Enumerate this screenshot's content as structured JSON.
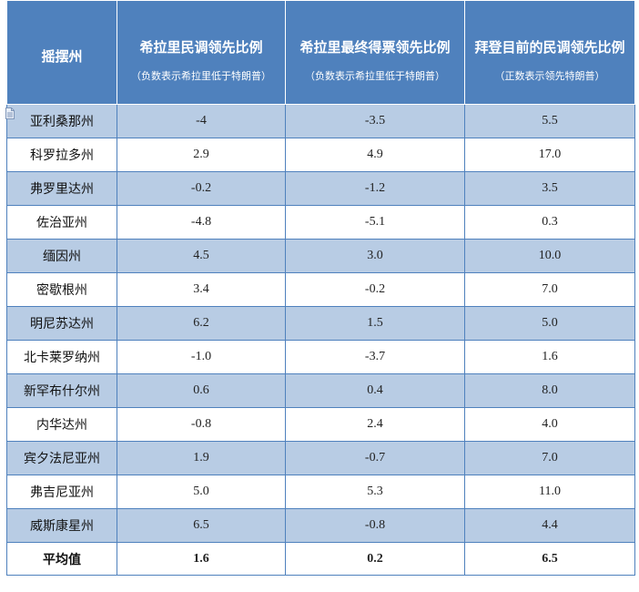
{
  "header": {
    "state_col": "摇摆州",
    "col1_title": "希拉里民调领先比例",
    "col1_note": "（负数表示希拉里低于特朗普）",
    "col2_title": "希拉里最终得票领先比例",
    "col2_note": "（负数表示希拉里低于特朗普）",
    "col3_title": "拜登目前的民调领先比例",
    "col3_note": "（正数表示领先特朗普）"
  },
  "rows": [
    {
      "state": "亚利桑那州",
      "c1": "-4",
      "c2": "-3.5",
      "c3": "5.5"
    },
    {
      "state": "科罗拉多州",
      "c1": "2.9",
      "c2": "4.9",
      "c3": "17.0"
    },
    {
      "state": "弗罗里达州",
      "c1": "-0.2",
      "c2": "-1.2",
      "c3": "3.5"
    },
    {
      "state": "佐治亚州",
      "c1": "-4.8",
      "c2": "-5.1",
      "c3": "0.3"
    },
    {
      "state": "缅因州",
      "c1": "4.5",
      "c2": "3.0",
      "c3": "10.0"
    },
    {
      "state": "密歇根州",
      "c1": "3.4",
      "c2": "-0.2",
      "c3": "7.0"
    },
    {
      "state": "明尼苏达州",
      "c1": "6.2",
      "c2": "1.5",
      "c3": "5.0"
    },
    {
      "state": "北卡莱罗纳州",
      "c1": "-1.0",
      "c2": "-3.7",
      "c3": "1.6"
    },
    {
      "state": "新罕布什尔州",
      "c1": "0.6",
      "c2": "0.4",
      "c3": "8.0"
    },
    {
      "state": "内华达州",
      "c1": "-0.8",
      "c2": "2.4",
      "c3": "4.0"
    },
    {
      "state": "宾夕法尼亚州",
      "c1": "1.9",
      "c2": "-0.7",
      "c3": "7.0"
    },
    {
      "state": "弗吉尼亚州",
      "c1": "5.0",
      "c2": "5.3",
      "c3": "11.0"
    },
    {
      "state": "威斯康星州",
      "c1": "6.5",
      "c2": "-0.8",
      "c3": "4.4"
    }
  ],
  "average": {
    "label": "平均值",
    "c1": "1.6",
    "c2": "0.2",
    "c3": "6.5"
  },
  "colors": {
    "header_bg": "#4f81bd",
    "alt_row_bg": "#b8cce4",
    "border": "#4f81bd"
  },
  "icons": {
    "row_marker": "document-icon"
  }
}
